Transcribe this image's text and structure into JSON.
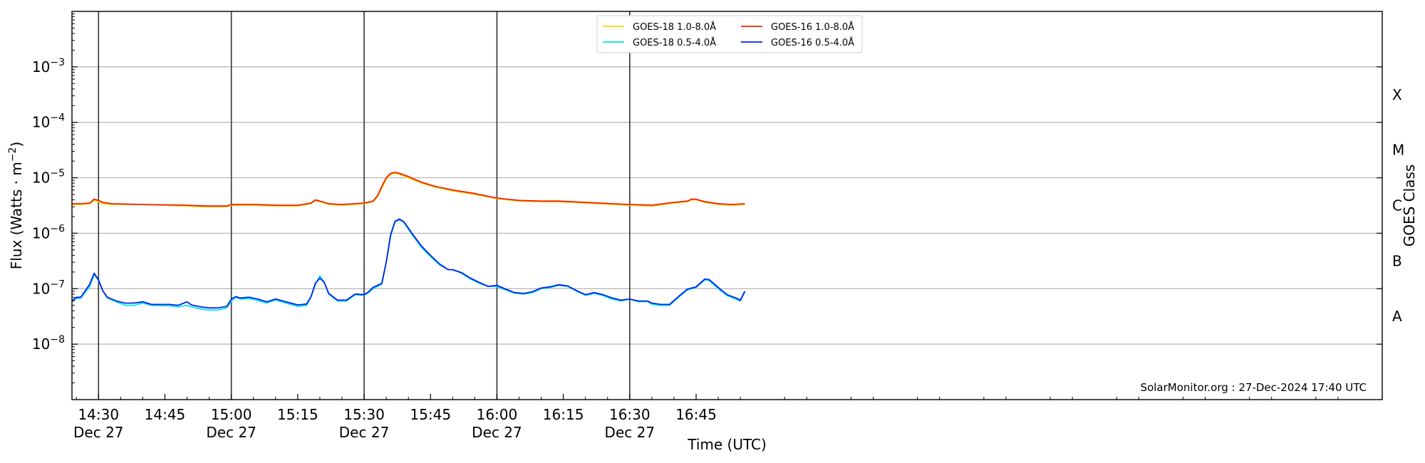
{
  "chart_data": {
    "type": "line",
    "xlabel": "Time (UTC)",
    "ylabel": "Flux (Watts · m",
    "ylabel_sup": "−2",
    "ylabel_end": ")",
    "right_label": "GOES Class",
    "credit": "SolarMonitor.org : 27-Dec-2024 17:40 UTC",
    "x_range_min": [
      864,
      1160
    ],
    "y_scale": "log",
    "ylim_exp": [
      -9,
      -2
    ],
    "y_ticks": [
      {
        "exp": -8,
        "base": "10",
        "sup": "−8"
      },
      {
        "exp": -7,
        "base": "10",
        "sup": "−7"
      },
      {
        "exp": -6,
        "base": "10",
        "sup": "−6"
      },
      {
        "exp": -5,
        "base": "10",
        "sup": "−5"
      },
      {
        "exp": -4,
        "base": "10",
        "sup": "−4"
      },
      {
        "exp": -3,
        "base": "10",
        "sup": "−3"
      }
    ],
    "x_ticks": [
      {
        "min": 870,
        "label": "14:30",
        "sub": "Dec 27"
      },
      {
        "min": 885,
        "label": "14:45",
        "sub": ""
      },
      {
        "min": 900,
        "label": "15:00",
        "sub": "Dec 27"
      },
      {
        "min": 915,
        "label": "15:15",
        "sub": ""
      },
      {
        "min": 930,
        "label": "15:30",
        "sub": "Dec 27"
      },
      {
        "min": 945,
        "label": "15:45",
        "sub": ""
      },
      {
        "min": 960,
        "label": "16:00",
        "sub": "Dec 27"
      },
      {
        "min": 975,
        "label": "16:15",
        "sub": ""
      },
      {
        "min": 990,
        "label": "16:30",
        "sub": "Dec 27"
      },
      {
        "min": 1005,
        "label": "16:45",
        "sub": ""
      }
    ],
    "vlines_min": [
      870,
      900,
      930,
      960,
      990
    ],
    "class_labels": [
      {
        "label": "X",
        "exp": -3.5
      },
      {
        "label": "M",
        "exp": -4.5
      },
      {
        "label": "C",
        "exp": -5.5
      },
      {
        "label": "B",
        "exp": -6.5
      },
      {
        "label": "A",
        "exp": -7.5
      }
    ],
    "legend_position": "upper-center",
    "legend": [
      {
        "name": "GOES-18 1.0-8.0Å",
        "color": "#ffd700"
      },
      {
        "name": "GOES-18 0.5-4.0Å",
        "color": "#00e5ee"
      },
      {
        "name": "GOES-16 1.0-8.0Å",
        "color": "#ee2200"
      },
      {
        "name": "GOES-16 0.5-4.0Å",
        "color": "#0022ee"
      }
    ],
    "series": [
      {
        "name": "GOES-18 1.0-8.0Å",
        "color": "#ffd700",
        "points": [
          [
            864,
            3.3e-06
          ],
          [
            866,
            3.3e-06
          ],
          [
            868,
            3.4e-06
          ],
          [
            869,
            3.9e-06
          ],
          [
            870,
            3.7e-06
          ],
          [
            871,
            3.4e-06
          ],
          [
            873,
            3.3e-06
          ],
          [
            880,
            3.3e-06
          ],
          [
            890,
            3.1e-06
          ],
          [
            894,
            3e-06
          ],
          [
            899,
            3e-06
          ],
          [
            900,
            3.2e-06
          ],
          [
            905,
            3.2e-06
          ],
          [
            910,
            3.1e-06
          ],
          [
            915,
            3.1e-06
          ],
          [
            918,
            3.4e-06
          ],
          [
            919,
            3.9e-06
          ],
          [
            920,
            3.7e-06
          ],
          [
            922,
            3.3e-06
          ],
          [
            925,
            3.2e-06
          ],
          [
            930,
            3.4e-06
          ],
          [
            932,
            3.7e-06
          ],
          [
            933,
            4.5e-06
          ],
          [
            934,
            6.5e-06
          ],
          [
            935,
            9.5e-06
          ],
          [
            936,
            1.15e-05
          ],
          [
            937,
            1.2e-05
          ],
          [
            938,
            1.15e-05
          ],
          [
            940,
            1e-05
          ],
          [
            943,
            8e-06
          ],
          [
            946,
            6.8e-06
          ],
          [
            950,
            5.8e-06
          ],
          [
            955,
            5e-06
          ],
          [
            960,
            4.2e-06
          ],
          [
            965,
            3.8e-06
          ],
          [
            970,
            3.7e-06
          ],
          [
            974,
            3.7e-06
          ],
          [
            980,
            3.5e-06
          ],
          [
            990,
            3.2e-06
          ],
          [
            995,
            3.1e-06
          ],
          [
            1000,
            3.5e-06
          ],
          [
            1003,
            3.7e-06
          ],
          [
            1004,
            4e-06
          ],
          [
            1005,
            4e-06
          ],
          [
            1007,
            3.6e-06
          ],
          [
            1010,
            3.3e-06
          ],
          [
            1013,
            3.2e-06
          ],
          [
            1016,
            3.3e-06
          ]
        ]
      },
      {
        "name": "GOES-16 1.0-8.0Å",
        "color": "#ee2200",
        "points": [
          [
            864,
            3.4e-06
          ],
          [
            866,
            3.4e-06
          ],
          [
            868,
            3.5e-06
          ],
          [
            869,
            4.1e-06
          ],
          [
            870,
            3.9e-06
          ],
          [
            871,
            3.6e-06
          ],
          [
            873,
            3.4e-06
          ],
          [
            880,
            3.3e-06
          ],
          [
            890,
            3.2e-06
          ],
          [
            894,
            3.1e-06
          ],
          [
            899,
            3.1e-06
          ],
          [
            900,
            3.3e-06
          ],
          [
            905,
            3.3e-06
          ],
          [
            910,
            3.2e-06
          ],
          [
            915,
            3.2e-06
          ],
          [
            918,
            3.5e-06
          ],
          [
            919,
            4e-06
          ],
          [
            920,
            3.8e-06
          ],
          [
            922,
            3.4e-06
          ],
          [
            925,
            3.3e-06
          ],
          [
            930,
            3.5e-06
          ],
          [
            932,
            3.8e-06
          ],
          [
            933,
            4.7e-06
          ],
          [
            934,
            7e-06
          ],
          [
            935,
            1e-05
          ],
          [
            936,
            1.2e-05
          ],
          [
            937,
            1.25e-05
          ],
          [
            938,
            1.2e-05
          ],
          [
            940,
            1.05e-05
          ],
          [
            943,
            8.3e-06
          ],
          [
            946,
            7e-06
          ],
          [
            950,
            6e-06
          ],
          [
            955,
            5.2e-06
          ],
          [
            960,
            4.3e-06
          ],
          [
            965,
            3.9e-06
          ],
          [
            970,
            3.8e-06
          ],
          [
            974,
            3.8e-06
          ],
          [
            980,
            3.6e-06
          ],
          [
            990,
            3.3e-06
          ],
          [
            995,
            3.2e-06
          ],
          [
            1000,
            3.6e-06
          ],
          [
            1003,
            3.8e-06
          ],
          [
            1004,
            4.1e-06
          ],
          [
            1005,
            4.1e-06
          ],
          [
            1007,
            3.7e-06
          ],
          [
            1010,
            3.4e-06
          ],
          [
            1013,
            3.3e-06
          ],
          [
            1016,
            3.4e-06
          ]
        ]
      },
      {
        "name": "GOES-18 0.5-4.0Å",
        "color": "#00e5ee",
        "points": [
          [
            864,
            6e-08
          ],
          [
            865,
            6.6e-08
          ],
          [
            866,
            6.8e-08
          ],
          [
            868,
            1.1e-07
          ],
          [
            869,
            1.8e-07
          ],
          [
            870,
            1.4e-07
          ],
          [
            871,
            9e-08
          ],
          [
            872,
            6.8e-08
          ],
          [
            874,
            5.8e-08
          ],
          [
            876,
            5e-08
          ],
          [
            878,
            5e-08
          ],
          [
            880,
            5.5e-08
          ],
          [
            882,
            5e-08
          ],
          [
            886,
            4.9e-08
          ],
          [
            888,
            4.7e-08
          ],
          [
            890,
            5e-08
          ],
          [
            891,
            4.7e-08
          ],
          [
            893,
            4.3e-08
          ],
          [
            895,
            4.1e-08
          ],
          [
            897,
            4.1e-08
          ],
          [
            899,
            4.5e-08
          ],
          [
            900,
            6e-08
          ],
          [
            901,
            7e-08
          ],
          [
            902,
            6.5e-08
          ],
          [
            904,
            6.6e-08
          ],
          [
            906,
            6.1e-08
          ],
          [
            908,
            5.5e-08
          ],
          [
            910,
            6.3e-08
          ],
          [
            912,
            5.6e-08
          ],
          [
            915,
            4.8e-08
          ],
          [
            917,
            5e-08
          ],
          [
            918,
            7e-08
          ],
          [
            919,
            1.2e-07
          ],
          [
            920,
            1.7e-07
          ],
          [
            921,
            1.3e-07
          ],
          [
            922,
            8e-08
          ],
          [
            924,
            6e-08
          ],
          [
            926,
            6e-08
          ],
          [
            928,
            7.8e-08
          ],
          [
            930,
            7.6e-08
          ],
          [
            931,
            8.5e-08
          ],
          [
            932,
            1e-07
          ],
          [
            934,
            1.2e-07
          ],
          [
            935,
            3e-07
          ],
          [
            936,
            9e-07
          ],
          [
            937,
            1.6e-06
          ],
          [
            938,
            1.75e-06
          ],
          [
            939,
            1.55e-06
          ],
          [
            941,
            9e-07
          ],
          [
            943,
            5.5e-07
          ],
          [
            945,
            3.8e-07
          ],
          [
            947,
            2.7e-07
          ],
          [
            949,
            2.2e-07
          ],
          [
            950,
            2.2e-07
          ],
          [
            952,
            1.9e-07
          ],
          [
            954,
            1.5e-07
          ],
          [
            956,
            1.25e-07
          ],
          [
            958,
            1.1e-07
          ],
          [
            960,
            1.1e-07
          ],
          [
            962,
            9.5e-08
          ],
          [
            964,
            8.3e-08
          ],
          [
            966,
            8e-08
          ],
          [
            968,
            8.5e-08
          ],
          [
            970,
            1e-07
          ],
          [
            972,
            1.05e-07
          ],
          [
            974,
            1.15e-07
          ],
          [
            976,
            1.1e-07
          ],
          [
            978,
            9e-08
          ],
          [
            980,
            7.6e-08
          ],
          [
            982,
            8.2e-08
          ],
          [
            984,
            7.5e-08
          ],
          [
            986,
            6.5e-08
          ],
          [
            988,
            6e-08
          ],
          [
            990,
            6.5e-08
          ],
          [
            992,
            5.8e-08
          ],
          [
            994,
            5.9e-08
          ],
          [
            995,
            5.2e-08
          ],
          [
            997,
            5e-08
          ],
          [
            999,
            5e-08
          ],
          [
            1001,
            7e-08
          ],
          [
            1003,
            9.5e-08
          ],
          [
            1005,
            1.05e-07
          ],
          [
            1007,
            1.45e-07
          ],
          [
            1008,
            1.4e-07
          ],
          [
            1010,
            1e-07
          ],
          [
            1012,
            7.5e-08
          ],
          [
            1014,
            6.5e-08
          ],
          [
            1015,
            6e-08
          ],
          [
            1016,
            8.8e-08
          ]
        ]
      },
      {
        "name": "GOES-16 0.5-4.0Å",
        "color": "#0022ee",
        "points": [
          [
            864,
            6e-08
          ],
          [
            865,
            7e-08
          ],
          [
            866,
            7e-08
          ],
          [
            868,
            1.2e-07
          ],
          [
            869,
            1.9e-07
          ],
          [
            870,
            1.45e-07
          ],
          [
            871,
            9e-08
          ],
          [
            872,
            7e-08
          ],
          [
            874,
            6e-08
          ],
          [
            876,
            5.5e-08
          ],
          [
            878,
            5.5e-08
          ],
          [
            880,
            5.8e-08
          ],
          [
            882,
            5.2e-08
          ],
          [
            886,
            5.2e-08
          ],
          [
            888,
            5e-08
          ],
          [
            890,
            5.8e-08
          ],
          [
            891,
            5.1e-08
          ],
          [
            893,
            4.7e-08
          ],
          [
            895,
            4.5e-08
          ],
          [
            897,
            4.5e-08
          ],
          [
            899,
            4.8e-08
          ],
          [
            900,
            6.5e-08
          ],
          [
            901,
            7.2e-08
          ],
          [
            902,
            6.8e-08
          ],
          [
            904,
            7e-08
          ],
          [
            906,
            6.5e-08
          ],
          [
            908,
            5.8e-08
          ],
          [
            910,
            6.5e-08
          ],
          [
            912,
            5.9e-08
          ],
          [
            915,
            5.1e-08
          ],
          [
            917,
            5.3e-08
          ],
          [
            918,
            7.2e-08
          ],
          [
            919,
            1.25e-07
          ],
          [
            920,
            1.55e-07
          ],
          [
            921,
            1.3e-07
          ],
          [
            922,
            8.2e-08
          ],
          [
            924,
            6.2e-08
          ],
          [
            926,
            6.2e-08
          ],
          [
            928,
            8e-08
          ],
          [
            930,
            7.8e-08
          ],
          [
            931,
            8.8e-08
          ],
          [
            932,
            1.05e-07
          ],
          [
            934,
            1.25e-07
          ],
          [
            935,
            3e-07
          ],
          [
            936,
            9.5e-07
          ],
          [
            937,
            1.65e-06
          ],
          [
            938,
            1.8e-06
          ],
          [
            939,
            1.6e-06
          ],
          [
            941,
            9.5e-07
          ],
          [
            943,
            5.8e-07
          ],
          [
            945,
            4e-07
          ],
          [
            947,
            2.8e-07
          ],
          [
            949,
            2.2e-07
          ],
          [
            950,
            2.2e-07
          ],
          [
            952,
            1.95e-07
          ],
          [
            954,
            1.55e-07
          ],
          [
            956,
            1.3e-07
          ],
          [
            958,
            1.1e-07
          ],
          [
            960,
            1.15e-07
          ],
          [
            962,
            9.8e-08
          ],
          [
            964,
            8.5e-08
          ],
          [
            966,
            8.2e-08
          ],
          [
            968,
            8.8e-08
          ],
          [
            970,
            1.03e-07
          ],
          [
            972,
            1.08e-07
          ],
          [
            974,
            1.18e-07
          ],
          [
            976,
            1.12e-07
          ],
          [
            978,
            9.2e-08
          ],
          [
            980,
            7.8e-08
          ],
          [
            982,
            8.5e-08
          ],
          [
            984,
            7.8e-08
          ],
          [
            986,
            6.8e-08
          ],
          [
            988,
            6.2e-08
          ],
          [
            990,
            6.5e-08
          ],
          [
            992,
            6e-08
          ],
          [
            994,
            6e-08
          ],
          [
            995,
            5.5e-08
          ],
          [
            997,
            5.2e-08
          ],
          [
            999,
            5.2e-08
          ],
          [
            1001,
            7.2e-08
          ],
          [
            1003,
            9.8e-08
          ],
          [
            1005,
            1.08e-07
          ],
          [
            1007,
            1.5e-07
          ],
          [
            1008,
            1.45e-07
          ],
          [
            1010,
            1.05e-07
          ],
          [
            1012,
            7.8e-08
          ],
          [
            1014,
            6.8e-08
          ],
          [
            1015,
            6.2e-08
          ],
          [
            1016,
            9e-08
          ]
        ]
      }
    ]
  }
}
